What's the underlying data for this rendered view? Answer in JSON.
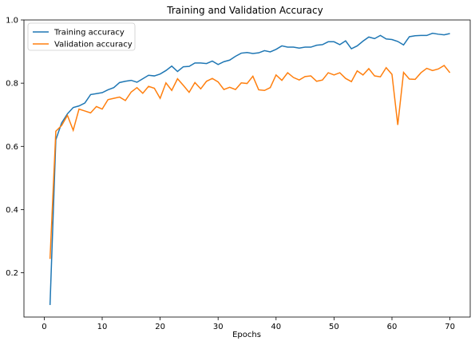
{
  "chart_data": {
    "type": "line",
    "title": "Training and Validation Accuracy",
    "xlabel": "Epochs",
    "ylabel": "",
    "xlim": [
      -3.5,
      73.5
    ],
    "ylim": [
      0.06,
      1.0
    ],
    "xticks": [
      0,
      10,
      20,
      30,
      40,
      50,
      60,
      70
    ],
    "yticks": [
      0.2,
      0.4,
      0.6,
      0.8,
      1.0
    ],
    "ytick_labels": [
      "0.2",
      "0.4",
      "0.6",
      "0.8",
      "1.0"
    ],
    "grid": false,
    "legend_position": "upper-left",
    "x": [
      1,
      2,
      3,
      4,
      5,
      6,
      7,
      8,
      9,
      10,
      11,
      12,
      13,
      14,
      15,
      16,
      17,
      18,
      19,
      20,
      21,
      22,
      23,
      24,
      25,
      26,
      27,
      28,
      29,
      30,
      31,
      32,
      33,
      34,
      35,
      36,
      37,
      38,
      39,
      40,
      41,
      42,
      43,
      44,
      45,
      46,
      47,
      48,
      49,
      50,
      51,
      52,
      53,
      54,
      55,
      56,
      57,
      58,
      59,
      60,
      61,
      62,
      63,
      64,
      65,
      66,
      67,
      68,
      69,
      70
    ],
    "series": [
      {
        "name": "Training accuracy",
        "color": "#1f77b4",
        "values": [
          0.098,
          0.621,
          0.674,
          0.703,
          0.723,
          0.728,
          0.737,
          0.764,
          0.767,
          0.77,
          0.779,
          0.786,
          0.802,
          0.806,
          0.809,
          0.803,
          0.814,
          0.825,
          0.823,
          0.829,
          0.84,
          0.854,
          0.837,
          0.852,
          0.853,
          0.864,
          0.864,
          0.862,
          0.87,
          0.859,
          0.868,
          0.873,
          0.885,
          0.895,
          0.897,
          0.894,
          0.896,
          0.903,
          0.899,
          0.907,
          0.918,
          0.914,
          0.914,
          0.911,
          0.914,
          0.914,
          0.92,
          0.922,
          0.931,
          0.931,
          0.922,
          0.934,
          0.909,
          0.918,
          0.933,
          0.946,
          0.941,
          0.951,
          0.94,
          0.938,
          0.932,
          0.921,
          0.947,
          0.95,
          0.951,
          0.951,
          0.958,
          0.955,
          0.953,
          0.957
        ]
      },
      {
        "name": "Validation accuracy",
        "color": "#ff7f0e",
        "values": [
          0.244,
          0.648,
          0.666,
          0.698,
          0.651,
          0.718,
          0.712,
          0.706,
          0.726,
          0.718,
          0.748,
          0.752,
          0.756,
          0.745,
          0.772,
          0.786,
          0.768,
          0.79,
          0.784,
          0.752,
          0.801,
          0.777,
          0.814,
          0.793,
          0.771,
          0.802,
          0.782,
          0.806,
          0.815,
          0.804,
          0.78,
          0.787,
          0.78,
          0.801,
          0.799,
          0.822,
          0.779,
          0.777,
          0.786,
          0.826,
          0.809,
          0.833,
          0.818,
          0.81,
          0.821,
          0.823,
          0.806,
          0.81,
          0.833,
          0.826,
          0.833,
          0.815,
          0.805,
          0.839,
          0.826,
          0.846,
          0.823,
          0.82,
          0.849,
          0.828,
          0.668,
          0.834,
          0.813,
          0.812,
          0.833,
          0.847,
          0.84,
          0.845,
          0.856,
          0.833
        ]
      }
    ]
  }
}
